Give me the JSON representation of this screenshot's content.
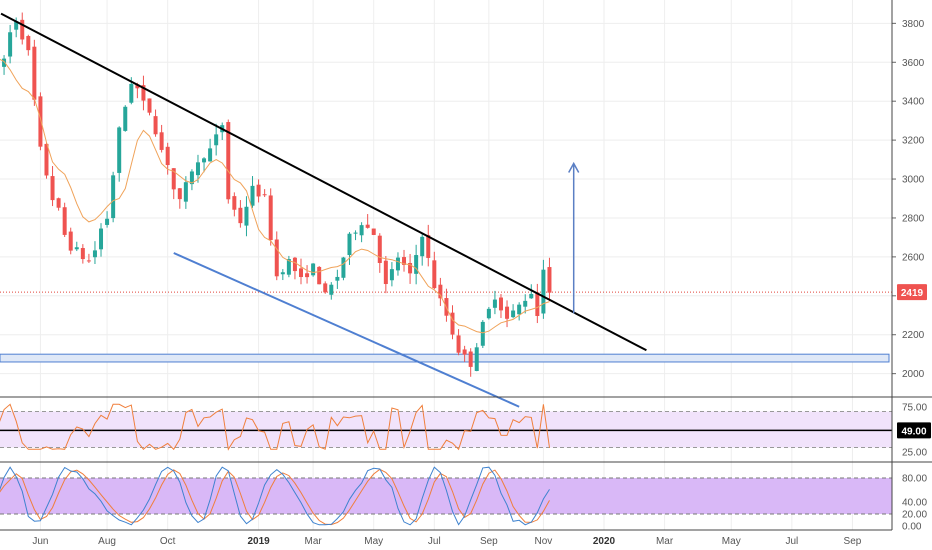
{
  "colors": {
    "up": "#26a69a",
    "down": "#ef5350",
    "ma": "#f0a35a",
    "trend_upper": "#000000",
    "trend_lower": "#4f7fd1",
    "target_arrow": "#5b7fc4",
    "support_zone_fill": "#dfe8f7",
    "support_zone_border": "#4f7fd1",
    "price_line": "#e0433a",
    "price_badge": "#ef5350",
    "rsi_line": "#f07f3c",
    "rsi_band": "#f1e3fb",
    "stoch_band": "#d9b8f7",
    "stoch_k": "#3f83cf",
    "stoch_d": "#f07f3c",
    "grid": "#eeeeee"
  },
  "chart_data": [
    {
      "type": "candlestick",
      "x_labels": [
        "Jun",
        "Aug",
        "Oct",
        "2019",
        "Mar",
        "May",
        "Jul",
        "Sep",
        "Nov",
        "2020",
        "Mar",
        "May",
        "Jul",
        "Sep"
      ],
      "y_ticks": [
        2000,
        2200,
        2400,
        2600,
        2800,
        3000,
        3200,
        3400,
        3600,
        3800
      ],
      "ylim": [
        1880,
        3920
      ],
      "last_price_label": "2419",
      "price_anchors": [
        [
          0,
          3550
        ],
        [
          3,
          3820
        ],
        [
          5,
          3650
        ],
        [
          7,
          3150
        ],
        [
          9,
          2900
        ],
        [
          12,
          2650
        ],
        [
          15,
          2580
        ],
        [
          18,
          2800
        ],
        [
          20,
          3250
        ],
        [
          22,
          3500
        ],
        [
          25,
          3350
        ],
        [
          27,
          3150
        ],
        [
          30,
          2880
        ],
        [
          32,
          3050
        ],
        [
          35,
          3150
        ],
        [
          37,
          3280
        ],
        [
          38,
          2900
        ],
        [
          40,
          2780
        ],
        [
          42,
          2950
        ],
        [
          44,
          2900
        ],
        [
          46,
          2500
        ],
        [
          48,
          2580
        ],
        [
          50,
          2480
        ],
        [
          52,
          2550
        ],
        [
          54,
          2400
        ],
        [
          56,
          2500
        ],
        [
          58,
          2700
        ],
        [
          60,
          2780
        ],
        [
          62,
          2720
        ],
        [
          64,
          2450
        ],
        [
          66,
          2600
        ],
        [
          68,
          2500
        ],
        [
          70,
          2720
        ],
        [
          72,
          2450
        ],
        [
          74,
          2300
        ],
        [
          76,
          2120
        ],
        [
          78,
          2050
        ],
        [
          80,
          2250
        ],
        [
          82,
          2400
        ],
        [
          84,
          2280
        ],
        [
          86,
          2350
        ],
        [
          88,
          2420
        ],
        [
          89,
          2300
        ],
        [
          90,
          2550
        ],
        [
          91,
          2419
        ]
      ],
      "ma_anchors": [
        [
          0,
          3620
        ],
        [
          5,
          3450
        ],
        [
          10,
          3050
        ],
        [
          15,
          2780
        ],
        [
          20,
          2900
        ],
        [
          24,
          3250
        ],
        [
          28,
          3050
        ],
        [
          32,
          2980
        ],
        [
          36,
          3100
        ],
        [
          40,
          2980
        ],
        [
          44,
          2700
        ],
        [
          48,
          2580
        ],
        [
          52,
          2520
        ],
        [
          56,
          2550
        ],
        [
          60,
          2640
        ],
        [
          64,
          2590
        ],
        [
          68,
          2560
        ],
        [
          72,
          2430
        ],
        [
          76,
          2250
        ],
        [
          80,
          2210
        ],
        [
          84,
          2270
        ],
        [
          88,
          2330
        ],
        [
          91,
          2370
        ]
      ],
      "trend_upper": [
        [
          0.5,
          3850
        ],
        [
          107,
          2120
        ]
      ],
      "trend_lower": [
        [
          29,
          2620
        ],
        [
          86,
          1830
        ]
      ],
      "support_zone": [
        2060,
        2100
      ],
      "target_arrow": [
        [
          95,
          2310
        ],
        [
          95,
          3080
        ]
      ]
    },
    {
      "type": "line",
      "indicator": "rsi",
      "y_ticks": [
        "75.00",
        "25.00"
      ],
      "bands": [
        30,
        70
      ],
      "level": 49,
      "level_label": "49.00",
      "ylim": [
        15,
        85
      ]
    },
    {
      "type": "line",
      "indicator": "stochastic",
      "y_ticks": [
        "80.00",
        "40.00",
        "20.00",
        "0.00"
      ],
      "bands": [
        20,
        80
      ],
      "ylim": [
        -5,
        105
      ]
    }
  ]
}
